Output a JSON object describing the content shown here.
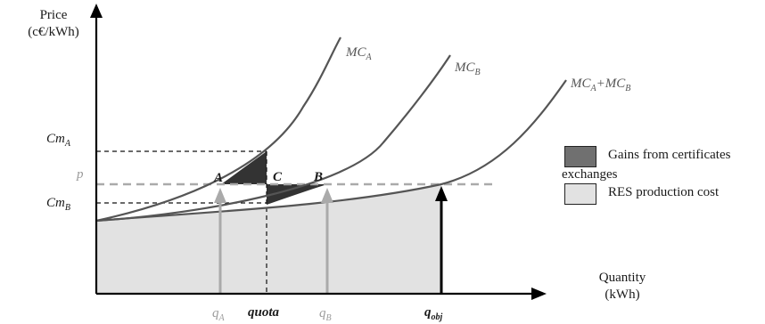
{
  "axes": {
    "y_title_line1": "Price",
    "y_title_line2": "(c€/kWh)",
    "x_title_line1": "Quantity",
    "x_title_line2": "(kWh)"
  },
  "curves": {
    "mc_a": {
      "base": "MC",
      "sub": "A"
    },
    "mc_b": {
      "base": "MC",
      "sub": "B"
    },
    "mc_sum": {
      "base1": "MC",
      "sub1": "A",
      "plus": "+",
      "base2": "MC",
      "sub2": "B"
    }
  },
  "y_labels": {
    "cm_a": {
      "base": "Cm",
      "sub": "A"
    },
    "p": "p",
    "cm_b": {
      "base": "Cm",
      "sub": "B"
    }
  },
  "x_labels": {
    "q_a": {
      "base": "q",
      "sub": "A"
    },
    "quota": "quota",
    "q_b": {
      "base": "q",
      "sub": "B"
    },
    "q_obj": {
      "base": "q",
      "sub": "obj"
    }
  },
  "points": {
    "a": "A",
    "b": "B",
    "c": "C"
  },
  "legend": {
    "gains": "Gains from certificates",
    "gains_cont": "exchanges",
    "res": "RES production cost"
  },
  "colors": {
    "curve": "#555555",
    "axis": "#000000",
    "price_line": "#aaaaaa",
    "p_label": "#9a9a9a",
    "gains_fill": "#333333",
    "gains_legend_fill": "#707070",
    "res_fill": "#e2e2e2",
    "arrow_light": "#aaaaaa",
    "arrow_dark": "#000000"
  }
}
